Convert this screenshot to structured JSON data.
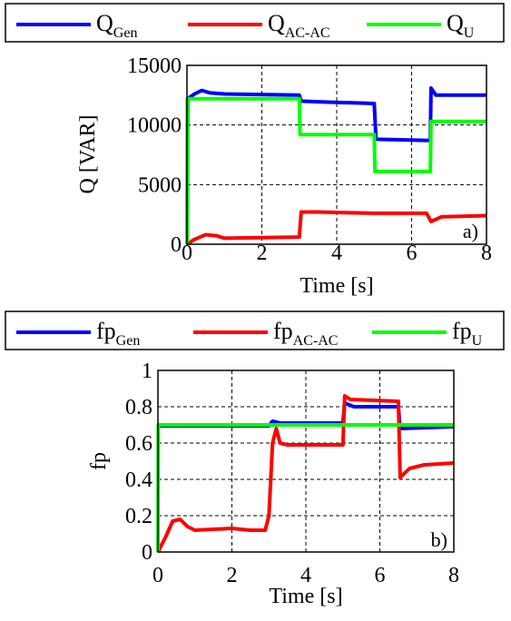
{
  "chart_data": [
    {
      "type": "line",
      "panel_label": "a)",
      "xlabel": "Time",
      "xlabel_unit": "[s]",
      "ylabel": "Q [VAR]",
      "xlim": [
        0,
        8
      ],
      "ylim": [
        0,
        15000
      ],
      "xticks": [
        "0",
        "2",
        "4",
        "6",
        "8"
      ],
      "yticks": [
        "0",
        "5000",
        "10000",
        "15000"
      ],
      "grid": true,
      "legend_position": "top",
      "series": [
        {
          "name": "Q",
          "name_sub": "Gen",
          "color": "#0000ff",
          "points": [
            [
              0,
              0
            ],
            [
              0.02,
              12200
            ],
            [
              0.2,
              12600
            ],
            [
              0.4,
              12900
            ],
            [
              0.6,
              12700
            ],
            [
              1.0,
              12600
            ],
            [
              3.0,
              12500
            ],
            [
              3.05,
              12000
            ],
            [
              3.5,
              11950
            ],
            [
              5.0,
              11800
            ],
            [
              5.05,
              8800
            ],
            [
              6.5,
              8700
            ],
            [
              6.52,
              13100
            ],
            [
              6.65,
              12500
            ],
            [
              8,
              12500
            ]
          ]
        },
        {
          "name": "Q",
          "name_sub": "AC-AC",
          "color": "#ff0000",
          "points": [
            [
              0,
              0
            ],
            [
              0.2,
              400
            ],
            [
              0.5,
              800
            ],
            [
              0.8,
              700
            ],
            [
              1.0,
              500
            ],
            [
              2.0,
              550
            ],
            [
              3.0,
              600
            ],
            [
              3.05,
              2700
            ],
            [
              3.5,
              2700
            ],
            [
              5.0,
              2600
            ],
            [
              6.4,
              2600
            ],
            [
              6.52,
              1900
            ],
            [
              6.8,
              2300
            ],
            [
              8,
              2400
            ]
          ]
        },
        {
          "name": "Q",
          "name_sub": "U",
          "color": "#00ff00",
          "points": [
            [
              0,
              0
            ],
            [
              0.01,
              12200
            ],
            [
              3.0,
              12200
            ],
            [
              3.02,
              9200
            ],
            [
              5.0,
              9200
            ],
            [
              5.02,
              6100
            ],
            [
              6.5,
              6100
            ],
            [
              6.52,
              10300
            ],
            [
              8,
              10300
            ]
          ]
        }
      ]
    },
    {
      "type": "line",
      "panel_label": "b)",
      "xlabel": "Time",
      "xlabel_unit": "[s]",
      "ylabel": "fp",
      "xlim": [
        0,
        8
      ],
      "ylim": [
        0,
        1
      ],
      "xticks": [
        "0",
        "2",
        "4",
        "6",
        "8"
      ],
      "yticks": [
        "0",
        "0.2",
        "0.4",
        "0.6",
        "0.8",
        "1"
      ],
      "grid": true,
      "legend_position": "top",
      "series": [
        {
          "name": "fp",
          "name_sub": "Gen",
          "color": "#0000ff",
          "points": [
            [
              0,
              0.695
            ],
            [
              3.0,
              0.695
            ],
            [
              3.1,
              0.72
            ],
            [
              3.3,
              0.71
            ],
            [
              5.0,
              0.71
            ],
            [
              5.05,
              0.82
            ],
            [
              5.3,
              0.8
            ],
            [
              6.5,
              0.8
            ],
            [
              6.55,
              0.68
            ],
            [
              8,
              0.69
            ]
          ]
        },
        {
          "name": "fp",
          "name_sub": "AC-AC",
          "color": "#ff0000",
          "points": [
            [
              0,
              0
            ],
            [
              0.2,
              0.08
            ],
            [
              0.4,
              0.17
            ],
            [
              0.6,
              0.18
            ],
            [
              0.8,
              0.14
            ],
            [
              1.0,
              0.12
            ],
            [
              2.0,
              0.13
            ],
            [
              2.5,
              0.12
            ],
            [
              2.9,
              0.12
            ],
            [
              3.0,
              0.2
            ],
            [
              3.1,
              0.6
            ],
            [
              3.2,
              0.68
            ],
            [
              3.3,
              0.6
            ],
            [
              3.5,
              0.59
            ],
            [
              5.0,
              0.59
            ],
            [
              5.05,
              0.86
            ],
            [
              5.2,
              0.84
            ],
            [
              6.5,
              0.83
            ],
            [
              6.55,
              0.41
            ],
            [
              6.8,
              0.46
            ],
            [
              7.2,
              0.48
            ],
            [
              8,
              0.49
            ]
          ]
        },
        {
          "name": "fp",
          "name_sub": "U",
          "color": "#00ff00",
          "points": [
            [
              0,
              0
            ],
            [
              0.01,
              0.7
            ],
            [
              8,
              0.7
            ]
          ]
        }
      ]
    }
  ]
}
